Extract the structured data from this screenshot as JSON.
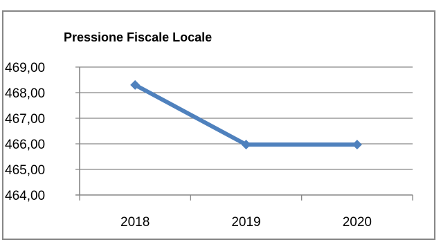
{
  "chart_data": {
    "type": "line",
    "title": "Pressione Fiscale Locale",
    "xlabel": "",
    "ylabel": "",
    "categories": [
      "2018",
      "2019",
      "2020"
    ],
    "series": [
      {
        "values": [
          468.3,
          465.97,
          465.97
        ]
      }
    ],
    "ylim": [
      464,
      469
    ],
    "yticks": [
      "464,00",
      "465,00",
      "466,00",
      "467,00",
      "468,00",
      "469,00"
    ],
    "grid": true,
    "legend": "none",
    "colors": {
      "series": "#4f81bd",
      "grid": "#868686",
      "frame": "#868686"
    }
  }
}
